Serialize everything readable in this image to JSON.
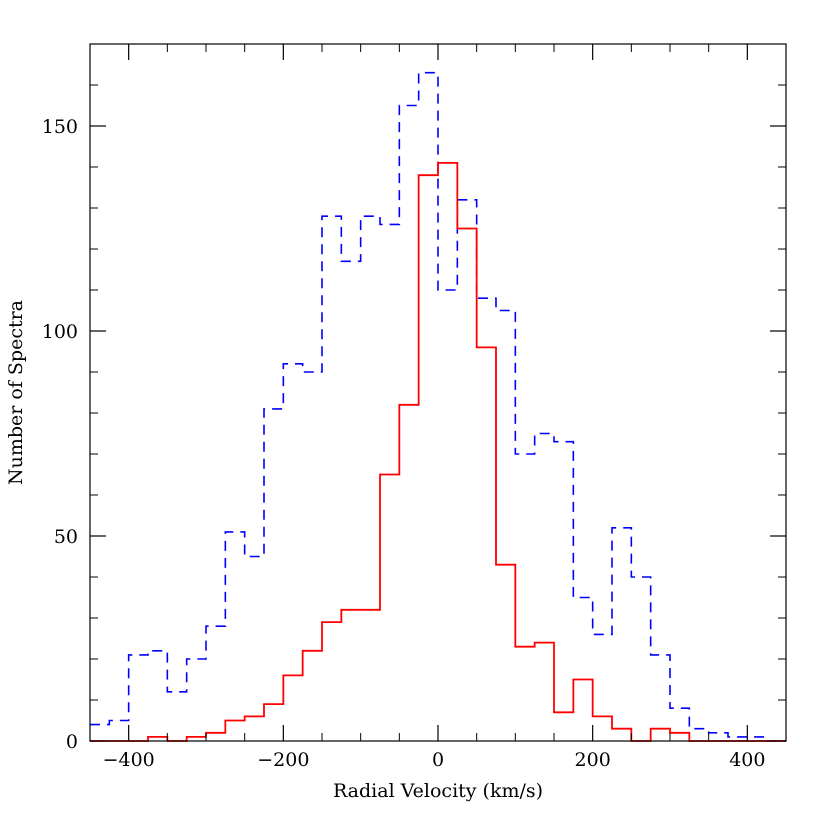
{
  "chart_data": {
    "type": "histogram",
    "xlabel": "Radial Velocity (km/s)",
    "ylabel": "Number of Spectra",
    "xlim": [
      -450,
      450
    ],
    "ylim": [
      0,
      170
    ],
    "xticks": [
      -400,
      -200,
      0,
      200,
      400
    ],
    "xtick_labels": [
      "−400",
      "−200",
      "0",
      "200",
      "400"
    ],
    "yticks": [
      0,
      50,
      100,
      150
    ],
    "ytick_labels": [
      "0",
      "50",
      "100",
      "150"
    ],
    "bin_edges": [
      -450,
      -425,
      -400,
      -375,
      -350,
      -325,
      -300,
      -275,
      -250,
      -225,
      -200,
      -175,
      -150,
      -125,
      -100,
      -75,
      -50,
      -25,
      0,
      25,
      50,
      75,
      100,
      125,
      150,
      175,
      200,
      225,
      250,
      275,
      300,
      325,
      350,
      375,
      400,
      425,
      450
    ],
    "series": [
      {
        "style": "dashed",
        "color": "#0000ff",
        "values": [
          4,
          5,
          21,
          22,
          12,
          20,
          28,
          51,
          45,
          81,
          92,
          90,
          128,
          117,
          128,
          126,
          155,
          163,
          110,
          132,
          108,
          105,
          70,
          75,
          73,
          35,
          26,
          52,
          40,
          21,
          8,
          3,
          2,
          1,
          1,
          0
        ]
      },
      {
        "style": "solid",
        "color": "#ff0000",
        "values": [
          0,
          0,
          0,
          1,
          0,
          1,
          2,
          5,
          6,
          9,
          16,
          22,
          29,
          32,
          32,
          65,
          82,
          138,
          141,
          125,
          96,
          43,
          23,
          24,
          7,
          15,
          6,
          3,
          0,
          3,
          2,
          0,
          0,
          0,
          0,
          0
        ]
      }
    ]
  }
}
